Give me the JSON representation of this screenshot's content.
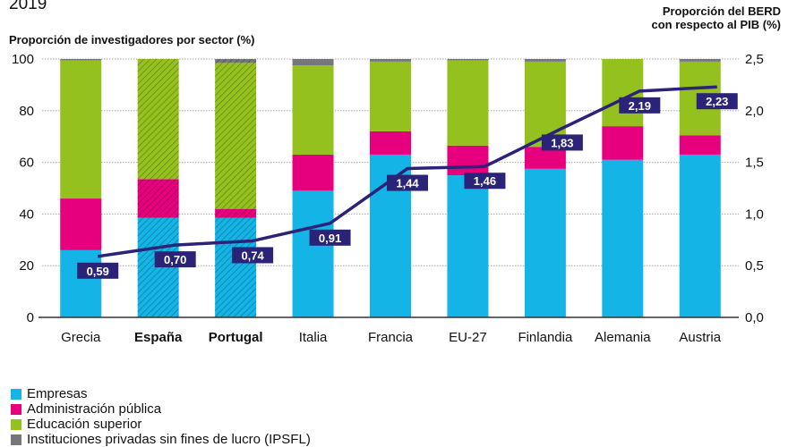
{
  "chart_data": {
    "type": "bar",
    "stacked": true,
    "title": "2019",
    "ylabel": "Proporción de investigadores por sector (%)",
    "y2label": "Proporción del BERD con respecto al PIB (%)",
    "ylim": [
      0,
      100
    ],
    "y2lim": [
      0,
      2.5
    ],
    "yticks": [
      "0",
      "20",
      "40",
      "60",
      "80",
      "100"
    ],
    "y2ticks": [
      "0,0",
      "0,5",
      "1,0",
      "1,5",
      "2,0",
      "2,5"
    ],
    "grid": true,
    "legend_position": "bottom-left",
    "categories": [
      "Grecia",
      "España",
      "Portugal",
      "Italia",
      "Francia",
      "EU-27",
      "Finlandia",
      "Alemania",
      "Austria"
    ],
    "highlighted": [
      "España",
      "Portugal"
    ],
    "series": [
      {
        "name": "Empresas",
        "color": "#14b4e6",
        "values": [
          26,
          38.5,
          38.5,
          49,
          63,
          55,
          57.5,
          61,
          63
        ]
      },
      {
        "name": "Administración pública",
        "color": "#e6007e",
        "values": [
          20,
          15,
          3.5,
          14,
          9,
          11.5,
          8.5,
          13,
          7.5
        ]
      },
      {
        "name": "Educación superior",
        "color": "#95c11f",
        "values": [
          53.5,
          46.5,
          56.5,
          34.5,
          27,
          33,
          33,
          26,
          28.5
        ]
      },
      {
        "name": "Instituciones privadas sin fines de lucro (IPSFL)",
        "color": "#77767b",
        "values": [
          0.5,
          0,
          1.5,
          2.5,
          1,
          0.5,
          1,
          0,
          1
        ]
      }
    ],
    "line": {
      "color": "#2a2377",
      "axis": "right",
      "values": [
        0.59,
        0.7,
        0.74,
        0.91,
        1.44,
        1.46,
        1.83,
        2.19,
        2.23
      ],
      "labels": [
        "0,59",
        "0,70",
        "0,74",
        "0,91",
        "1,44",
        "1,46",
        "1,83",
        "2,19",
        "2,23"
      ]
    }
  }
}
